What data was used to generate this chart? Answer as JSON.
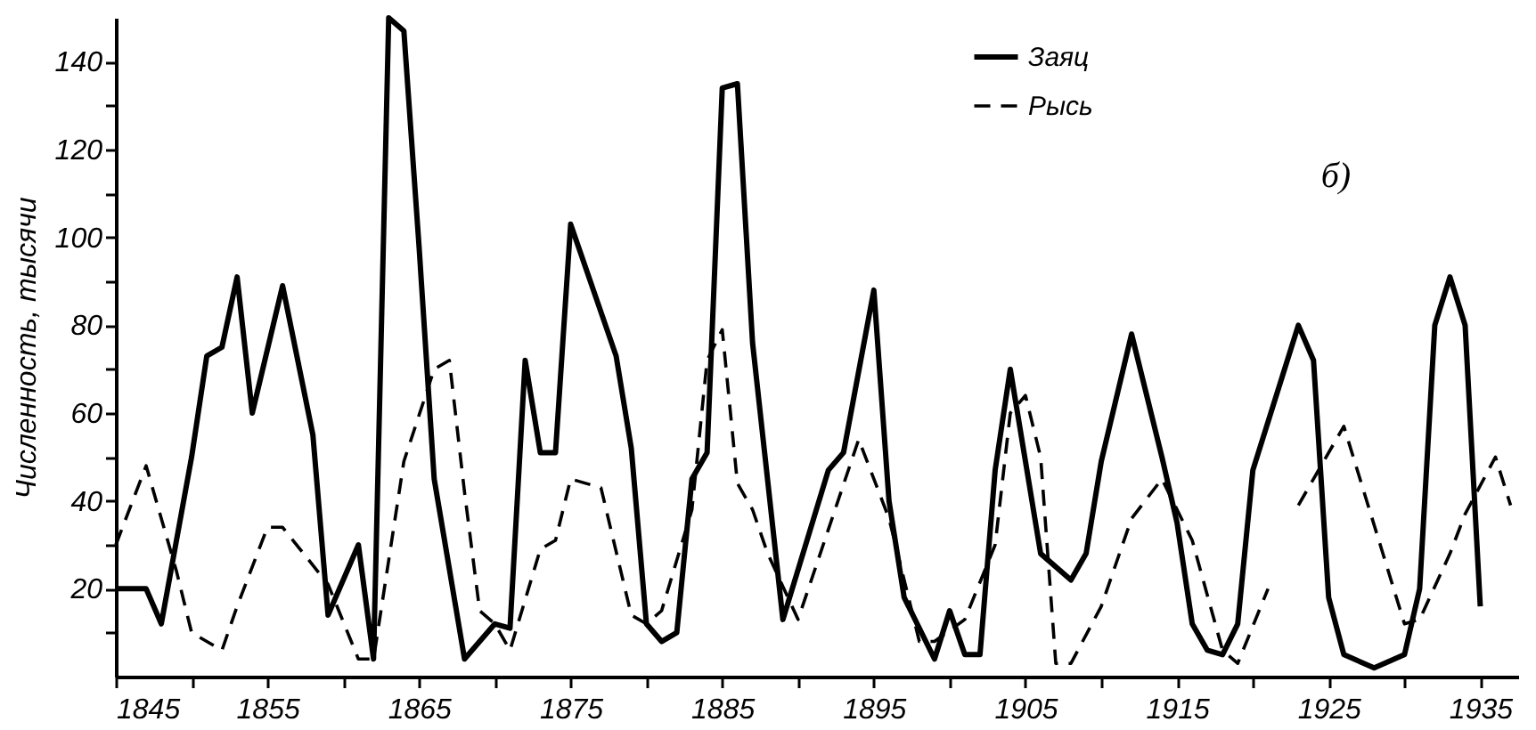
{
  "chart_data": {
    "type": "line",
    "ylabel": "Численность, тысячи",
    "annotations": [
      "б)"
    ],
    "legend": "top right",
    "grid": false,
    "marker": "none",
    "xlim": [
      1845,
      1937.5
    ],
    "ylim": [
      0,
      150
    ],
    "xticks": [
      1845,
      {
        "value": 1850,
        "label": null
      },
      1855,
      {
        "value": 1860,
        "label": null
      },
      1865,
      {
        "value": 1870,
        "label": null
      },
      1875,
      {
        "value": 1880,
        "label": null
      },
      1885,
      {
        "value": 1890,
        "label": null
      },
      1895,
      {
        "value": 1900,
        "label": null
      },
      1905,
      {
        "value": 1910,
        "label": null
      },
      1915,
      {
        "value": 1920,
        "label": null
      },
      1925,
      {
        "value": 1930,
        "label": null
      },
      1935
    ],
    "yticks": [
      {
        "value": 10,
        "label": null
      },
      20,
      {
        "value": 30,
        "label": null
      },
      40,
      {
        "value": 50,
        "label": null
      },
      60,
      {
        "value": 70,
        "label": null
      },
      80,
      {
        "value": 90,
        "label": null
      },
      100,
      {
        "value": 110,
        "label": null
      },
      120,
      {
        "value": 130,
        "label": null
      },
      140
    ],
    "series": [
      {
        "name": "Заяц",
        "color": "#000000",
        "line_style": "solid",
        "x": [
          1845,
          1847,
          1848,
          1850,
          1851,
          1852,
          1853,
          1854,
          1856,
          1858,
          1859,
          1861,
          1862,
          1863,
          1864,
          1865,
          1866,
          1868,
          1870,
          1871,
          1872,
          1873,
          1874,
          1875,
          1878,
          1879,
          1880,
          1881,
          1882,
          1883,
          1884,
          1885,
          1886,
          1887,
          1889,
          1892,
          1893,
          1895,
          1896,
          1897,
          1899,
          1900,
          1901,
          1902,
          1903,
          1904,
          1906,
          1908,
          1909,
          1910,
          1912,
          1914,
          1915,
          1916,
          1917,
          1918,
          1919,
          1920,
          1921,
          1923,
          1924,
          1925,
          1926,
          1928,
          1930,
          1931,
          1932,
          1933,
          1934,
          1935
        ],
        "values": [
          20,
          20,
          12,
          50,
          73,
          75,
          91,
          60,
          89,
          55,
          14,
          30,
          4,
          150,
          147,
          98,
          45,
          4,
          12,
          11,
          72,
          51,
          51,
          103,
          73,
          52,
          12,
          8,
          10,
          45,
          51,
          134,
          135,
          76,
          13,
          47,
          51,
          88,
          40,
          18,
          4,
          15,
          5,
          5,
          47,
          70,
          28,
          22,
          28,
          49,
          78,
          50,
          35,
          12,
          6,
          5,
          12,
          47,
          58,
          80,
          72,
          18,
          5,
          2,
          5,
          20,
          80,
          91,
          80,
          16
        ]
      },
      {
        "name": "Рысь",
        "color": "#000000",
        "line_style": "dashed",
        "x": [
          1845,
          1847,
          1849,
          1850,
          1852,
          1853,
          1855,
          1856,
          1859,
          1861,
          1862,
          1864,
          1866,
          1867,
          1868,
          1869,
          1870,
          1871,
          1873,
          1874,
          1875,
          1877,
          1879,
          1880,
          1881,
          1883,
          1884,
          1885,
          1886,
          1887,
          1888,
          1890,
          1894,
          1896,
          1898,
          1899,
          1901,
          1903,
          1904,
          1905,
          1906,
          1907,
          1908,
          1910,
          1912,
          1914,
          1916,
          1918,
          1919,
          1921,
          1922,
          1923,
          1926,
          1930,
          1931,
          1933,
          1934,
          1936,
          1937
        ],
        "values": [
          30,
          48,
          24,
          10,
          6,
          16,
          34,
          34,
          21,
          4,
          4,
          49,
          70,
          72,
          42,
          15,
          12,
          6,
          29,
          31,
          45,
          43,
          14,
          12,
          15,
          38,
          72,
          79,
          44,
          38,
          28,
          13,
          54,
          36,
          8,
          8,
          13,
          30,
          60,
          64,
          50,
          3,
          3,
          16,
          36,
          45,
          31,
          6,
          3,
          20,
          null,
          39,
          57,
          12,
          13,
          28,
          37,
          50,
          39
        ]
      }
    ]
  }
}
